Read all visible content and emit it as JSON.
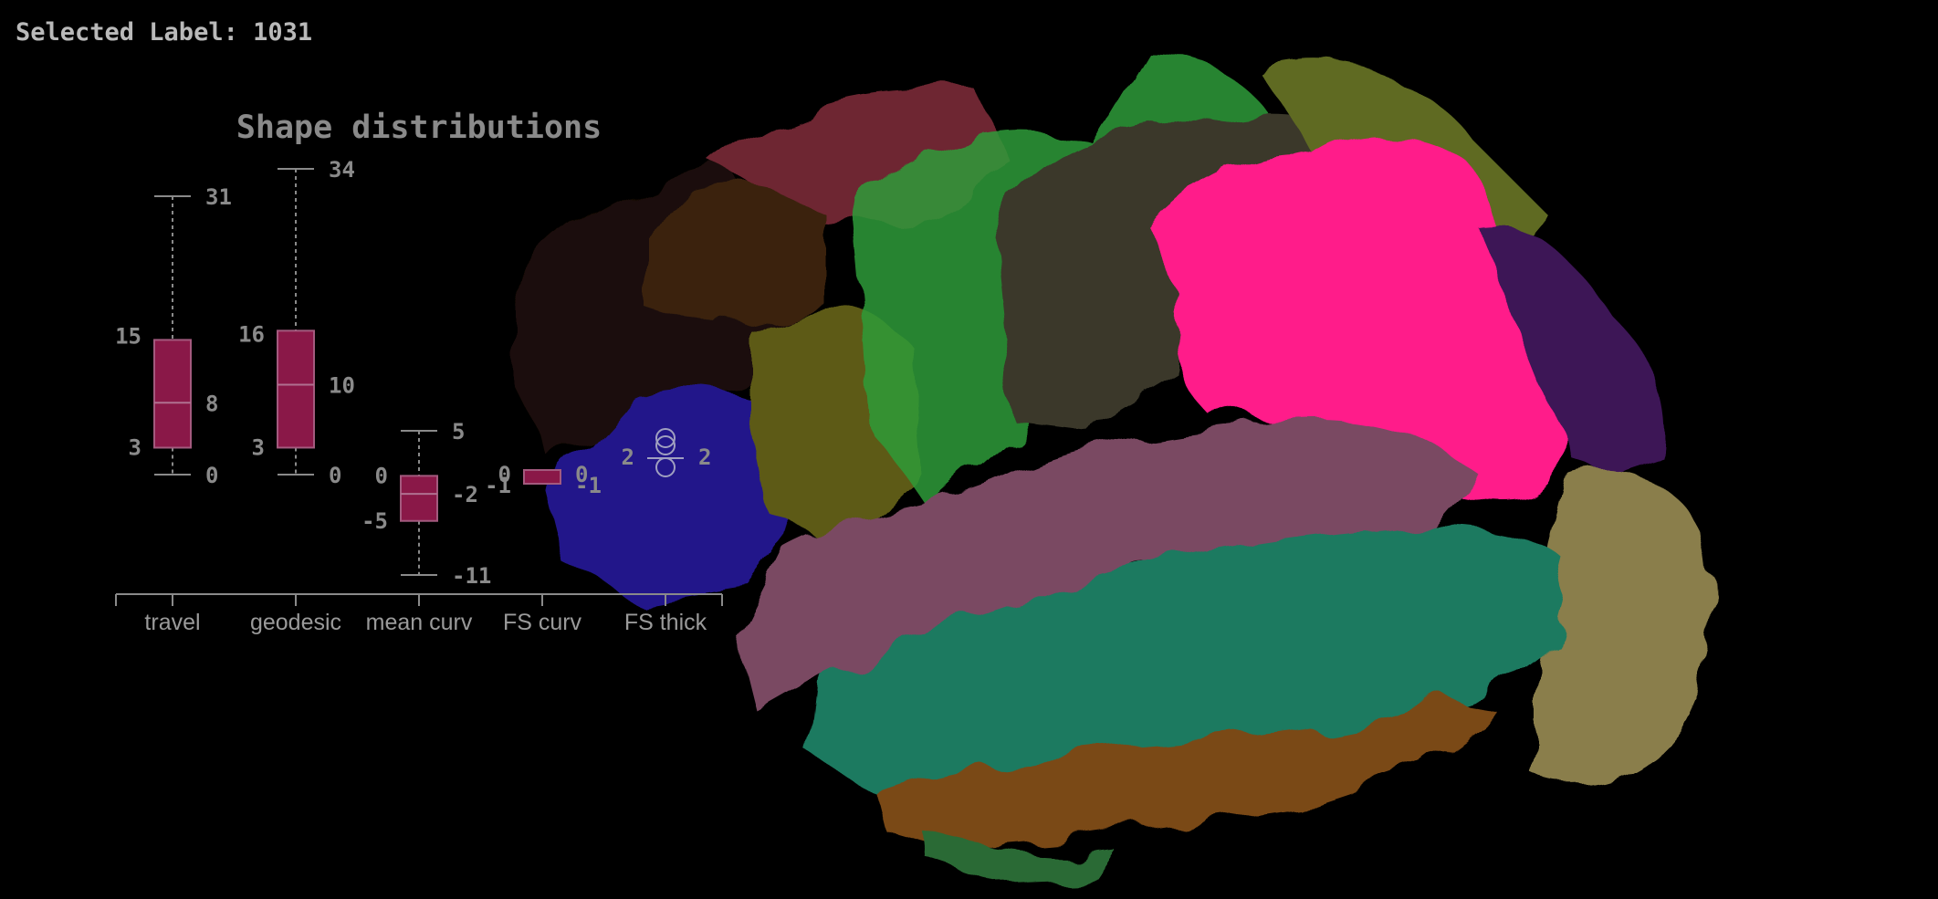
{
  "selected_label": {
    "text": "Selected Label: 1031"
  },
  "colors": {
    "box_fill": "#8a1848",
    "box_stroke": "#a35a7e",
    "chart_text": "#8a8a8a",
    "highlight_region": "#ff1a8a",
    "background": "#000000"
  },
  "brain_view": {
    "description_icon": "brain-surface-icon",
    "regions": [
      {
        "name": "highlighted",
        "color": "#ff1a8a"
      },
      {
        "name": "green-light",
        "color": "#2fa83a"
      },
      {
        "name": "green-dark",
        "color": "#3b3a22"
      },
      {
        "name": "olive",
        "color": "#6c6c1e"
      },
      {
        "name": "maroon",
        "color": "#7a2a36"
      },
      {
        "name": "brown",
        "color": "#3a2410"
      },
      {
        "name": "blue",
        "color": "#21197a"
      },
      {
        "name": "purple",
        "color": "#3c1250"
      },
      {
        "name": "mauve",
        "color": "#7a4a62"
      },
      {
        "name": "teal",
        "color": "#1e7a5e"
      },
      {
        "name": "tan",
        "color": "#8a7e4a"
      },
      {
        "name": "orange",
        "color": "#8a4a18"
      }
    ]
  },
  "chart_data": {
    "type": "box",
    "title": "Shape distributions",
    "categories": [
      "travel",
      "geodesic",
      "mean curv",
      "FS curv",
      "FS thick"
    ],
    "boxes": [
      {
        "category": "travel",
        "min": 0,
        "q1": 3,
        "median": 8,
        "q3": 15,
        "max": 31,
        "labels": {
          "max": "31",
          "q3": "15",
          "median": "8",
          "q1": "3",
          "min": "0"
        }
      },
      {
        "category": "geodesic",
        "min": 0,
        "q1": 3,
        "median": 10,
        "q3": 16,
        "max": 34,
        "labels": {
          "max": "34",
          "q3": "16",
          "median": "10",
          "q1": "3",
          "min": "0"
        }
      },
      {
        "category": "mean curv",
        "min": -11,
        "q1": -5,
        "median": -2,
        "q3": 0,
        "max": 5,
        "labels": {
          "max": "5",
          "q3": "0",
          "median": "-2",
          "q1": "-5",
          "min": "-11"
        }
      },
      {
        "category": "FS curv",
        "min": -1,
        "q1": -1,
        "median": -1,
        "q3": 0,
        "max": 0,
        "labels": {
          "q3": "0",
          "median": "-1",
          "q1": "-1",
          "max": "0"
        }
      },
      {
        "category": "FS thick",
        "min": 2,
        "q1": 2,
        "median": 2,
        "q3": 2,
        "max": 2,
        "labels": {
          "q1": "2",
          "median": "2"
        }
      }
    ],
    "grid": false,
    "legend": "none"
  }
}
